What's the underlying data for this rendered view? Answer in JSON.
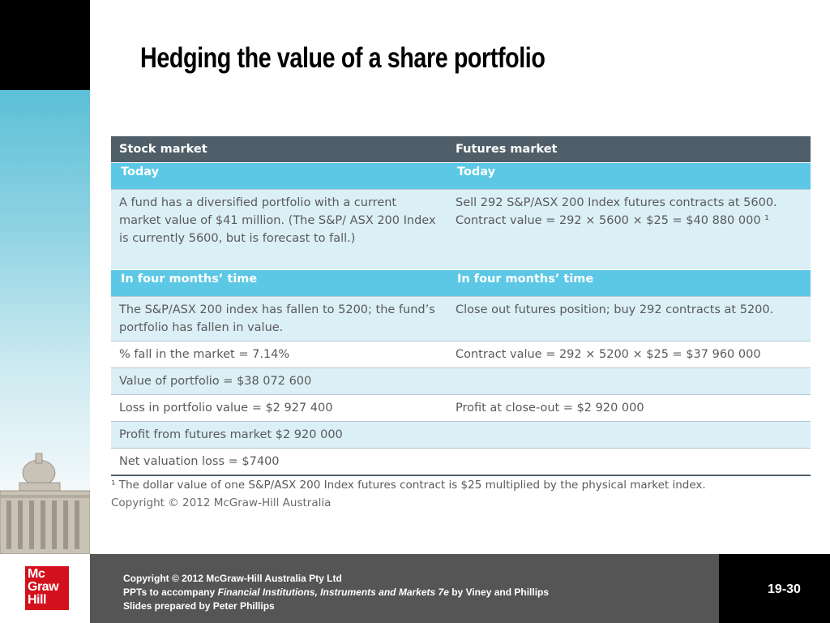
{
  "title": "Hedging the value of a share portfolio",
  "table": {
    "headers": [
      "Stock market",
      "Futures market"
    ],
    "rows": [
      {
        "kind": "sub",
        "cells": [
          "Today",
          "Today"
        ]
      },
      {
        "kind": "light",
        "cells": [
          "A fund has a diversified portfolio with a current market value of $41 million. (The S&P/ ASX 200 Index is currently 5600, but is forecast to fall.)",
          "Sell 292 S&P/ASX 200 Index futures contracts at 5600.\nContract value = 292 × 5600 × $25 = $40 880 000 ¹"
        ]
      },
      {
        "kind": "sub",
        "cells": [
          "In four months’ time",
          "In four months’ time"
        ]
      },
      {
        "kind": "light",
        "cells": [
          "The S&P/ASX 200 index has fallen to 5200; the fund’s portfolio has fallen in value.",
          "Close out futures position; buy 292 contracts at 5200."
        ]
      },
      {
        "kind": "white",
        "cells": [
          "% fall in the market = 7.14%",
          "Contract value = 292 × 5200 × $25 = $37 960 000"
        ]
      },
      {
        "kind": "light",
        "cells": [
          "Value of portfolio = $38 072 600",
          ""
        ]
      },
      {
        "kind": "white",
        "cells": [
          "Loss in portfolio value = $2 927 400",
          "Profit at close-out = $2 920 000"
        ]
      },
      {
        "kind": "light",
        "cells": [
          "Profit from futures market $2 920 000",
          ""
        ]
      },
      {
        "kind": "white",
        "cells": [
          "Net valuation loss = $7400",
          ""
        ]
      }
    ]
  },
  "footnote": "¹ The dollar value of one S&P/ASX 200 Index futures contract is $25 multiplied by the physical market index.",
  "figure_copyright": "Copyright © 2012 McGraw-Hill Australia",
  "footer": {
    "line1": "Copyright © 2012 McGraw-Hill Australia Pty Ltd",
    "line2_prefix": "PPTs to accompany ",
    "line2_italic": "Financial Institutions, Instruments and Markets 7e",
    "line2_suffix": " by Viney and Phillips",
    "line3": "Slides prepared by Peter Phillips"
  },
  "page_number": "19-30",
  "logo": {
    "line1": "Mc",
    "line2": "Graw",
    "line3": "Hill"
  }
}
